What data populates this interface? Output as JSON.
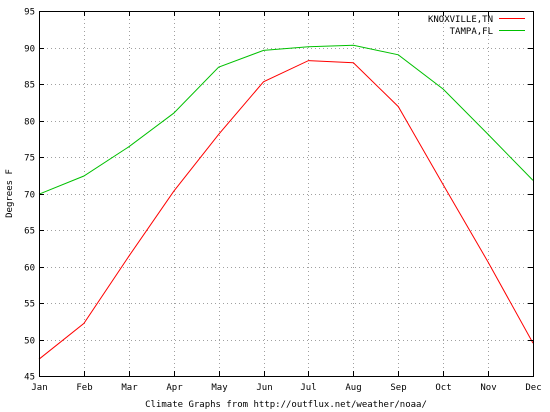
{
  "chart_data": {
    "type": "line",
    "title": "",
    "xlabel": "Climate Graphs from http://outflux.net/weather/noaa/",
    "ylabel": "Degrees F",
    "categories": [
      "Jan",
      "Feb",
      "Mar",
      "Apr",
      "May",
      "Jun",
      "Jul",
      "Aug",
      "Sep",
      "Oct",
      "Nov",
      "Dec"
    ],
    "ylim": [
      45,
      95
    ],
    "yticks": [
      45,
      50,
      55,
      60,
      65,
      70,
      75,
      80,
      85,
      90,
      95
    ],
    "grid": true,
    "legend_position": "top-right",
    "series": [
      {
        "name": "KNOXVILLE,TN",
        "color": "#ff0000",
        "values": [
          47.3,
          52.2,
          61.4,
          70.3,
          78.1,
          85.3,
          88.2,
          87.9,
          81.9,
          71.2,
          60.6,
          49.5
        ]
      },
      {
        "name": "TAMPA,FL",
        "color": "#00c000",
        "values": [
          69.9,
          72.4,
          76.4,
          81.0,
          87.3,
          89.6,
          90.1,
          90.3,
          89.0,
          84.3,
          78.1,
          71.8
        ]
      }
    ]
  }
}
